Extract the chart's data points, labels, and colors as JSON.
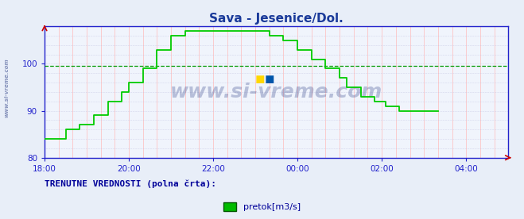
{
  "title": "Sava - Jesenice/Dol.",
  "title_color": "#1a3a9a",
  "title_fontsize": 11,
  "bg_color": "#e8eef8",
  "plot_bg_color": "#f0f4fc",
  "ylim": [
    80,
    108
  ],
  "yticks": [
    80,
    90,
    100
  ],
  "xtick_labels": [
    "18:00",
    "20:00",
    "22:00",
    "00:00",
    "02:00",
    "04:00"
  ],
  "xtick_positions": [
    0,
    24,
    48,
    72,
    96,
    120
  ],
  "avg_line_value": 99.5,
  "avg_line_color": "#009900",
  "line_color": "#00cc00",
  "line_width": 1.3,
  "axis_color": "#2222cc",
  "tick_color": "#2222cc",
  "grid_v_color": "#ffbbbb",
  "grid_h_color": "#bbbbdd",
  "legend_label": "pretok[m3/s]",
  "legend_color": "#00bb00",
  "footnote": "TRENUTNE VREDNOSTI (polna črta):",
  "footnote_color": "#000099",
  "watermark": "www.si-vreme.com",
  "watermark_color": "#334488",
  "side_watermark": "www.si-vreme.com",
  "side_watermark_color": "#334488",
  "flow_values": [
    84,
    84,
    84,
    84,
    84,
    84,
    86,
    86,
    86,
    86,
    87,
    87,
    87,
    87,
    89,
    89,
    89,
    89,
    92,
    92,
    92,
    92,
    94,
    94,
    96,
    96,
    96,
    96,
    99,
    99,
    99,
    99,
    103,
    103,
    103,
    103,
    106,
    106,
    106,
    106,
    107,
    107,
    107,
    107,
    107,
    107,
    107,
    107,
    107,
    107,
    107,
    107,
    107,
    107,
    107,
    107,
    107,
    107,
    107,
    107,
    107,
    107,
    107,
    107,
    106,
    106,
    106,
    106,
    105,
    105,
    105,
    105,
    103,
    103,
    103,
    103,
    101,
    101,
    101,
    101,
    99,
    99,
    99,
    99,
    97,
    97,
    95,
    95,
    95,
    95,
    93,
    93,
    93,
    93,
    92,
    92,
    92,
    91,
    91,
    91,
    91,
    90,
    90,
    90,
    90,
    90,
    90,
    90,
    90,
    90,
    90,
    90,
    90
  ]
}
